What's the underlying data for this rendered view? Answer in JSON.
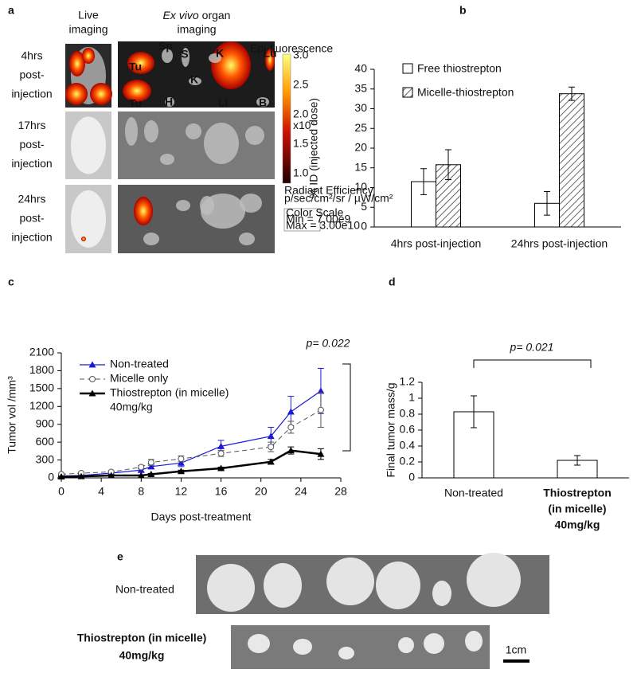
{
  "panel_a": {
    "label": "a",
    "header_live": [
      "Live",
      "imaging"
    ],
    "header_exvivo": {
      "italic": "Ex vivo",
      "rest": "organ",
      "line2": "imaging"
    },
    "rows": [
      [
        "4hrs",
        "post-",
        "injection"
      ],
      [
        "17hrs",
        "post-",
        "injection"
      ],
      [
        "24hrs",
        "post-",
        "injection"
      ]
    ],
    "organs": [
      "Tu",
      "Sp",
      "S",
      "K",
      "Lu",
      "Tu",
      "H",
      "K",
      "Li",
      "B"
    ],
    "scale": {
      "title": "Epi-fluorescence",
      "ticks": [
        "3.0",
        "2.5",
        "2.0",
        "1.5",
        "1.0"
      ],
      "exponent": "x10",
      "power": "10",
      "units_title": "Radiant Efficiency",
      "units": "p/sec/cm²/sr / µW/cm²",
      "box": [
        "Color Scale",
        "Min = 7.00e9",
        "Max = 3.00e10"
      ]
    }
  },
  "chart_data": [
    {
      "type": "bar",
      "label": "b",
      "ylabel": "% ID (injected dose)",
      "categories": [
        "4hrs post-injection",
        "24hrs post-injection"
      ],
      "series": [
        {
          "name": "Free thiostrepton",
          "color": "#ffffff",
          "pattern": "none",
          "values": [
            11.5,
            6
          ],
          "errors": [
            3.3,
            3
          ]
        },
        {
          "name": "Micelle-thiostrepton",
          "color": "#ffffff",
          "pattern": "hatch",
          "values": [
            15.8,
            33.8
          ],
          "errors": [
            3.8,
            1.7
          ]
        }
      ],
      "ylim": [
        0,
        40
      ],
      "yticks": [
        0,
        5,
        10,
        15,
        20,
        25,
        30,
        35,
        40
      ]
    },
    {
      "type": "line",
      "label": "c",
      "xlabel": "Days post-treatment",
      "ylabel": "Tumor vol /mm³",
      "x": [
        0,
        2,
        5,
        8,
        9,
        12,
        16,
        21,
        23,
        26
      ],
      "series": [
        {
          "name": [
            "Non-treated"
          ],
          "color": "#1a1ad6",
          "marker": "triangle",
          "dash": "none",
          "width": 1.2,
          "values": [
            30,
            40,
            80,
            130,
            190,
            250,
            530,
            700,
            1110,
            1460
          ],
          "errors": [
            10,
            10,
            20,
            30,
            40,
            60,
            100,
            150,
            260,
            380
          ]
        },
        {
          "name": [
            "Micelle only"
          ],
          "color": "#555555",
          "marker": "circle",
          "dash": "6,4",
          "width": 1,
          "values": [
            60,
            80,
            100,
            180,
            260,
            320,
            410,
            520,
            850,
            1140
          ],
          "errors": [
            10,
            15,
            20,
            30,
            50,
            50,
            50,
            80,
            100,
            290
          ]
        },
        {
          "name": [
            "Thiostrepton (in micelle)",
            "40mg/kg"
          ],
          "color": "#000000",
          "marker": "triangle",
          "dash": "none",
          "width": 2.5,
          "values": [
            20,
            25,
            40,
            40,
            60,
            110,
            160,
            270,
            460,
            400
          ],
          "errors": [
            5,
            5,
            10,
            10,
            15,
            20,
            20,
            40,
            60,
            90
          ]
        }
      ],
      "xlim": [
        0,
        28
      ],
      "xticks": [
        0,
        4,
        8,
        12,
        16,
        20,
        24,
        28
      ],
      "ylim": [
        0,
        2100
      ],
      "yticks": [
        0,
        300,
        600,
        900,
        1200,
        1500,
        1800,
        2100
      ],
      "annotation": "p= 0.022"
    },
    {
      "type": "bar",
      "label": "d",
      "ylabel": "Final tumor mass/g",
      "categories": [
        [
          "Non-treated"
        ],
        [
          "Thiostrepton",
          "(in micelle)",
          "40mg/kg"
        ]
      ],
      "label_weight": [
        "normal",
        "bold"
      ],
      "series": [
        {
          "color": "#ffffff",
          "pattern": "none",
          "values": [
            0.83,
            0.22
          ],
          "errors": [
            0.2,
            0.06
          ]
        }
      ],
      "ylim": [
        0,
        1.2
      ],
      "yticks": [
        0,
        0.2,
        0.4,
        0.6,
        0.8,
        1,
        1.2
      ],
      "annotation": "p= 0.021"
    }
  ],
  "panel_e": {
    "label": "e",
    "groups": [
      [
        "Non-treated"
      ],
      [
        "Thiostrepton (in micelle)",
        "40mg/kg"
      ]
    ],
    "scale_bar": "1cm"
  }
}
